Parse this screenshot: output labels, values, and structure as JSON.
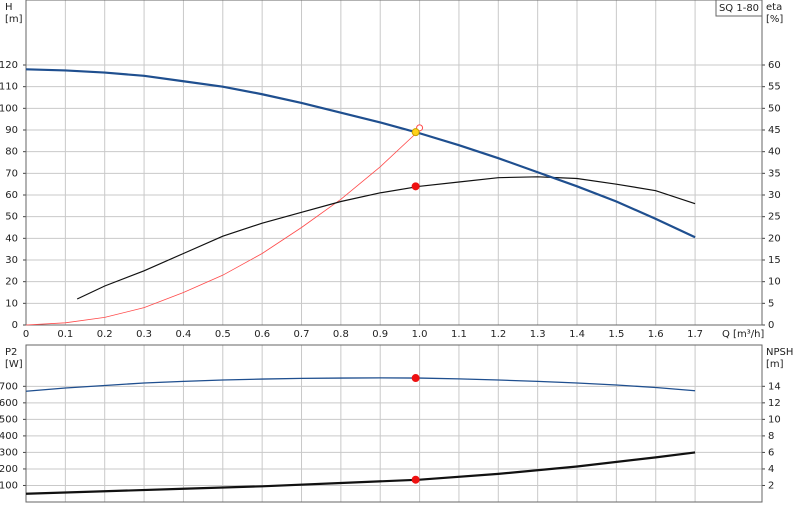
{
  "chart_data": [
    {
      "type": "line",
      "legend_label": "SQ 1-80",
      "ylabel": "H",
      "yunit": "[m]",
      "y2label": "eta",
      "y2unit": "[%]",
      "xlabel": "Q [m³/h]",
      "xlim": [
        0,
        1.87
      ],
      "ylim": [
        0,
        150
      ],
      "y2lim": [
        0,
        75
      ],
      "xticks": [
        0,
        0.1,
        0.2,
        0.3,
        0.4,
        0.5,
        0.6,
        0.7,
        0.8,
        0.9,
        {
          "value": 1,
          "label": "1.0"
        },
        1.1,
        1.2,
        1.3,
        1.4,
        1.5,
        1.6,
        1.7
      ],
      "yticks": [
        0,
        10,
        20,
        30,
        40,
        50,
        60,
        70,
        80,
        90,
        100,
        110,
        120
      ],
      "y2ticks": [
        0,
        5,
        10,
        15,
        20,
        25,
        30,
        35,
        40,
        45,
        50,
        55,
        60
      ],
      "grid": true,
      "show_xtick_labels": true,
      "series": [
        {
          "color": "#ff4a4a",
          "width": 0.8,
          "axis": "y",
          "x": [
            0,
            0.1,
            0.2,
            0.3,
            0.4,
            0.5,
            0.6,
            0.7,
            0.8,
            0.9,
            1.0
          ],
          "values": [
            0,
            1,
            3.5,
            8,
            15,
            23,
            33,
            45,
            58,
            73,
            90
          ]
        },
        {
          "color": "#111111",
          "width": 1.2,
          "axis": "y2",
          "x": [
            0.13,
            0.2,
            0.3,
            0.4,
            0.5,
            0.6,
            0.7,
            0.8,
            0.9,
            1.0,
            1.1,
            1.2,
            1.3,
            1.4,
            1.5,
            1.6,
            1.7
          ],
          "values": [
            6,
            9,
            12.5,
            16.5,
            20.5,
            23.5,
            26,
            28.5,
            30.5,
            32,
            33,
            34,
            34.2,
            33.8,
            32.5,
            31,
            28
          ]
        },
        {
          "color": "#1f4f8f",
          "width": 2.2,
          "axis": "y",
          "x": [
            0,
            0.1,
            0.2,
            0.3,
            0.4,
            0.5,
            0.6,
            0.7,
            0.8,
            0.9,
            1.0,
            1.1,
            1.2,
            1.3,
            1.4,
            1.5,
            1.6,
            1.7
          ],
          "values": [
            118,
            117.5,
            116.5,
            115,
            112.5,
            110,
            106.5,
            102.5,
            98,
            93.5,
            88.5,
            83,
            77,
            70.5,
            64,
            57,
            49,
            40.5
          ]
        }
      ],
      "points": [
        {
          "x": 1.0,
          "value": 91,
          "color": "#ff4a4a",
          "filled": false,
          "axis": "y"
        },
        {
          "x": 0.99,
          "value": 32,
          "color": "#ee1111",
          "filled": true,
          "axis": "y2"
        },
        {
          "x": 0.99,
          "value": 89,
          "color": "#ffd21a",
          "filled": true,
          "axis": "y"
        }
      ]
    },
    {
      "type": "line",
      "ylabel": "P2",
      "yunit": "[W]",
      "y2label": "NPSH",
      "y2unit": "[m]",
      "xlim": [
        0,
        1.87
      ],
      "ylim": [
        0,
        950
      ],
      "y2lim": [
        0,
        19
      ],
      "xticks": [
        0,
        0.1,
        0.2,
        0.3,
        0.4,
        0.5,
        0.6,
        0.7,
        0.8,
        0.9,
        1.0,
        1.1,
        1.2,
        1.3,
        1.4,
        1.5,
        1.6,
        1.7
      ],
      "yticks": [
        100,
        200,
        300,
        400,
        500,
        600,
        700
      ],
      "y2ticks": [
        2,
        4,
        6,
        8,
        10,
        12,
        14
      ],
      "grid": true,
      "show_xtick_labels": false,
      "series": [
        {
          "color": "#1f4f8f",
          "width": 1.3,
          "axis": "y",
          "x": [
            0,
            0.1,
            0.2,
            0.3,
            0.4,
            0.5,
            0.6,
            0.7,
            0.8,
            0.9,
            1.0,
            1.1,
            1.2,
            1.3,
            1.4,
            1.5,
            1.6,
            1.7
          ],
          "values": [
            670,
            690,
            705,
            720,
            730,
            738,
            744,
            748,
            750,
            751,
            750,
            745,
            738,
            730,
            720,
            708,
            693,
            673
          ]
        },
        {
          "color": "#111111",
          "width": 2.2,
          "axis": "y2",
          "x": [
            0,
            0.2,
            0.4,
            0.6,
            0.8,
            1.0,
            1.2,
            1.4,
            1.6,
            1.7
          ],
          "values": [
            1.0,
            1.3,
            1.6,
            1.9,
            2.3,
            2.7,
            3.4,
            4.3,
            5.4,
            6.0
          ]
        }
      ],
      "points": [
        {
          "x": 0.99,
          "value": 750,
          "color": "#ee1111",
          "filled": true,
          "axis": "y"
        },
        {
          "x": 0.99,
          "value": 2.7,
          "color": "#ee1111",
          "filled": true,
          "axis": "y2"
        }
      ]
    }
  ]
}
